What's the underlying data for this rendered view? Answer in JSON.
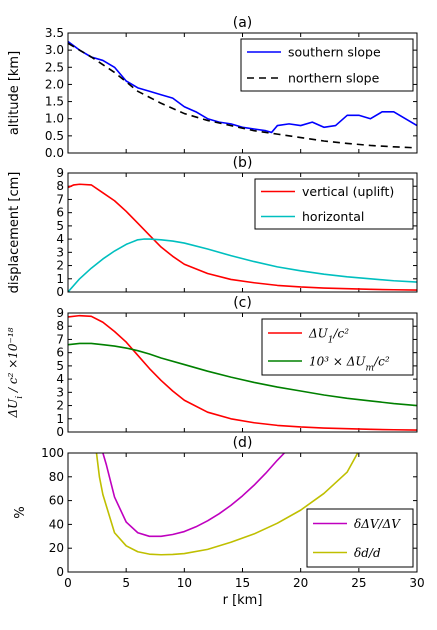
{
  "chart_data": [
    {
      "type": "line",
      "title": "(a)",
      "ylabel": "altitude [km]",
      "xlim": [
        0,
        30
      ],
      "ylim": [
        0,
        3.5
      ],
      "yticks": [
        "0.0",
        "0.5",
        "1.0",
        "1.5",
        "2.0",
        "2.5",
        "3.0",
        "3.5"
      ],
      "legend_position": "top-right",
      "series": [
        {
          "name": "southern slope",
          "color": "#0000ff",
          "style": "solid",
          "x": [
            0,
            1,
            2,
            3,
            4,
            5,
            6,
            7,
            8,
            9,
            10,
            11,
            12,
            13,
            14,
            15,
            16,
            17,
            17.5,
            18,
            19,
            20,
            21,
            22,
            23,
            24,
            25,
            26,
            27,
            28,
            29,
            30
          ],
          "y": [
            3.25,
            3.0,
            2.8,
            2.7,
            2.5,
            2.1,
            1.9,
            1.8,
            1.7,
            1.6,
            1.35,
            1.2,
            1.0,
            0.9,
            0.85,
            0.75,
            0.7,
            0.65,
            0.6,
            0.8,
            0.85,
            0.8,
            0.9,
            0.75,
            0.8,
            1.1,
            1.1,
            1.0,
            1.2,
            1.2,
            1.0,
            0.8
          ]
        },
        {
          "name": "northern slope",
          "color": "#000000",
          "style": "dashed",
          "x": [
            0,
            2,
            4,
            6,
            8,
            10,
            12,
            14,
            16,
            18,
            20,
            22,
            24,
            26,
            28,
            30
          ],
          "y": [
            3.2,
            2.8,
            2.35,
            1.8,
            1.45,
            1.15,
            0.95,
            0.8,
            0.65,
            0.55,
            0.45,
            0.35,
            0.28,
            0.22,
            0.18,
            0.15
          ]
        }
      ]
    },
    {
      "type": "line",
      "title": "(b)",
      "ylabel": "displacement [cm]",
      "xlim": [
        0,
        30
      ],
      "ylim": [
        0,
        9
      ],
      "yticks": [
        "0",
        "1",
        "2",
        "3",
        "4",
        "5",
        "6",
        "7",
        "8",
        "9"
      ],
      "legend_position": "top-right",
      "series": [
        {
          "name": "vertical (uplift)",
          "color": "#ff0000",
          "style": "solid",
          "x": [
            0,
            0.5,
            1,
            2,
            3,
            4,
            5,
            6,
            7,
            8,
            9,
            10,
            12,
            14,
            16,
            18,
            20,
            22,
            24,
            26,
            28,
            30
          ],
          "y": [
            7.9,
            8.1,
            8.15,
            8.1,
            7.5,
            6.9,
            6.1,
            5.2,
            4.3,
            3.4,
            2.7,
            2.1,
            1.4,
            0.95,
            0.7,
            0.5,
            0.38,
            0.3,
            0.25,
            0.2,
            0.17,
            0.15
          ]
        },
        {
          "name": "horizontal",
          "color": "#00bfbf",
          "style": "solid",
          "x": [
            0,
            1,
            2,
            3,
            4,
            5,
            6,
            6.5,
            7,
            8,
            9,
            10,
            12,
            14,
            16,
            18,
            20,
            22,
            24,
            26,
            28,
            30
          ],
          "y": [
            0,
            1.0,
            1.8,
            2.5,
            3.1,
            3.6,
            3.95,
            4.0,
            4.0,
            3.95,
            3.85,
            3.7,
            3.25,
            2.75,
            2.3,
            1.9,
            1.6,
            1.35,
            1.15,
            1.0,
            0.85,
            0.75
          ]
        }
      ]
    },
    {
      "type": "line",
      "title": "(c)",
      "ylabel": "ΔU_i / c² ×10⁻¹⁸",
      "xlim": [
        0,
        30
      ],
      "ylim": [
        0,
        9
      ],
      "yticks": [
        "0",
        "1",
        "2",
        "3",
        "4",
        "5",
        "6",
        "7",
        "8",
        "9"
      ],
      "legend_position": "top-right",
      "series": [
        {
          "name": "ΔU_1/c²",
          "color": "#ff0000",
          "style": "solid",
          "x": [
            0,
            1,
            2,
            3,
            4,
            5,
            6,
            7,
            8,
            9,
            10,
            12,
            14,
            16,
            18,
            20,
            22,
            24,
            26,
            28,
            30
          ],
          "y": [
            8.7,
            8.8,
            8.75,
            8.3,
            7.6,
            6.8,
            5.8,
            4.8,
            3.9,
            3.1,
            2.4,
            1.5,
            1.0,
            0.7,
            0.5,
            0.38,
            0.3,
            0.25,
            0.2,
            0.17,
            0.15
          ]
        },
        {
          "name": "10³ × ΔU_m/c²",
          "color": "#008000",
          "style": "solid",
          "x": [
            0,
            1,
            2,
            3,
            4,
            5,
            6,
            7,
            8,
            10,
            12,
            14,
            16,
            18,
            20,
            22,
            24,
            26,
            28,
            30
          ],
          "y": [
            6.6,
            6.7,
            6.7,
            6.6,
            6.5,
            6.35,
            6.15,
            5.9,
            5.6,
            5.1,
            4.6,
            4.15,
            3.75,
            3.4,
            3.1,
            2.8,
            2.55,
            2.35,
            2.15,
            2.0
          ]
        }
      ]
    },
    {
      "type": "line",
      "title": "(d)",
      "xlabel": "r [km]",
      "ylabel": "%",
      "xlim": [
        0,
        30
      ],
      "ylim": [
        0,
        100
      ],
      "xticks": [
        "0",
        "5",
        "10",
        "15",
        "20",
        "25",
        "30"
      ],
      "yticks": [
        "0",
        "20",
        "40",
        "60",
        "80",
        "100"
      ],
      "legend_position": "bottom-right",
      "series": [
        {
          "name": "δΔV/ΔV",
          "color": "#bf00bf",
          "style": "solid",
          "x": [
            3.0,
            3.3,
            4,
            5,
            6,
            7,
            8,
            9,
            10,
            11,
            12,
            13,
            14,
            15,
            16,
            17,
            18,
            18.6
          ],
          "y": [
            100,
            90,
            63,
            42,
            33,
            30,
            30,
            31.5,
            34,
            38,
            43,
            49,
            56,
            64,
            73,
            83,
            94,
            100
          ]
        },
        {
          "name": "δd/d",
          "color": "#bfbf00",
          "style": "solid",
          "x": [
            2.45,
            2.7,
            3,
            4,
            5,
            6,
            7,
            8,
            9,
            10,
            12,
            14,
            16,
            18,
            20,
            22,
            24,
            24.9
          ],
          "y": [
            100,
            80,
            65,
            33,
            22,
            17,
            15,
            14.5,
            14.8,
            15.5,
            19,
            25,
            32,
            41,
            52,
            66,
            84,
            100
          ]
        }
      ]
    }
  ]
}
